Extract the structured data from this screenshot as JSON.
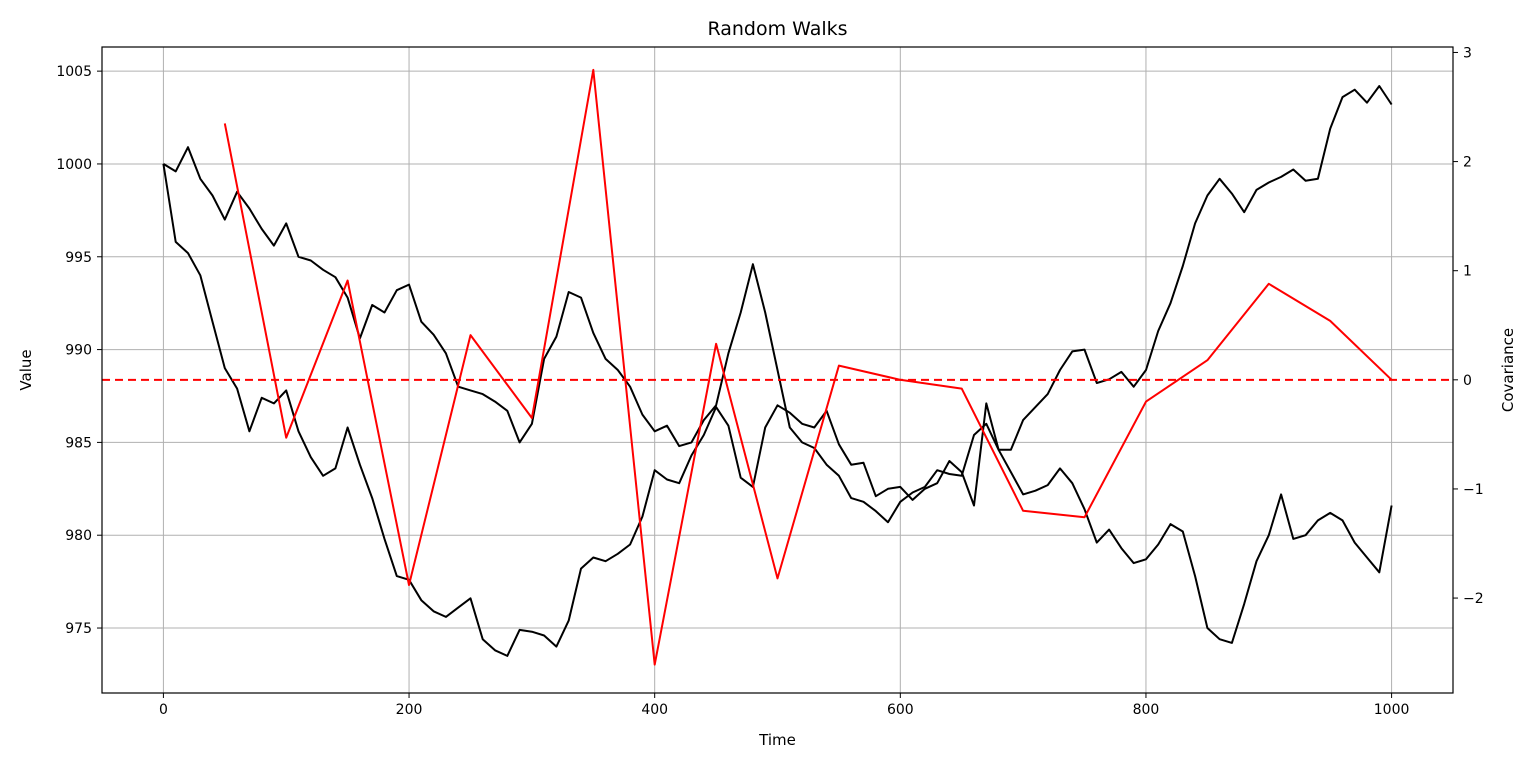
{
  "chart_data": {
    "type": "line",
    "title": "Random Walks",
    "xlabel": "Time",
    "ylabel": "Value",
    "y2label": "Covariance",
    "xlim": [
      -50,
      1050
    ],
    "ylim": [
      971.5,
      1006.3
    ],
    "y2lim": [
      -2.87,
      3.05
    ],
    "xticks": [
      0,
      200,
      400,
      600,
      800,
      1000
    ],
    "yticks": [
      975,
      980,
      985,
      990,
      995,
      1000,
      1005
    ],
    "y2ticks": [
      -2,
      -1,
      0,
      1,
      2,
      3
    ],
    "y2tick_labels": [
      "−2",
      "−1",
      "0",
      "1",
      "2",
      "3"
    ],
    "grid": true,
    "colors": {
      "walk": "#000000",
      "covariance": "#ff0000",
      "zero_line": "#ff0000",
      "y2label": "#ff0000"
    },
    "series": [
      {
        "axis": "left",
        "color": "#000000",
        "x": [
          0,
          10,
          20,
          30,
          40,
          50,
          60,
          70,
          80,
          90,
          100,
          110,
          120,
          130,
          140,
          150,
          160,
          170,
          180,
          190,
          200,
          210,
          220,
          230,
          240,
          250,
          260,
          270,
          280,
          290,
          300,
          310,
          320,
          330,
          340,
          350,
          360,
          370,
          380,
          390,
          400,
          410,
          420,
          430,
          440,
          450,
          460,
          470,
          480,
          490,
          500,
          510,
          520,
          530,
          540,
          550,
          560,
          570,
          580,
          590,
          600,
          610,
          620,
          630,
          640,
          650,
          660,
          670,
          680,
          690,
          700,
          710,
          720,
          730,
          740,
          750,
          760,
          770,
          780,
          790,
          800,
          810,
          820,
          830,
          840,
          850,
          860,
          870,
          880,
          890,
          900,
          910,
          920,
          930,
          940,
          950,
          960,
          970,
          980,
          990,
          1000
        ],
        "values": [
          1000,
          999.6,
          1000.9,
          999.2,
          998.3,
          997.0,
          998.5,
          997.6,
          996.5,
          995.6,
          996.8,
          995.0,
          994.8,
          994.3,
          993.9,
          992.8,
          990.6,
          992.4,
          992.0,
          993.2,
          993.5,
          991.5,
          990.8,
          989.8,
          988.0,
          987.8,
          987.6,
          987.2,
          986.7,
          985.0,
          986.0,
          989.5,
          990.7,
          993.1,
          992.8,
          990.9,
          989.5,
          988.9,
          988.0,
          986.5,
          985.6,
          985.9,
          984.8,
          985.0,
          986.2,
          987.0,
          989.8,
          992.0,
          994.6,
          992.0,
          988.9,
          985.8,
          985.0,
          984.7,
          983.8,
          983.2,
          982.0,
          981.8,
          981.3,
          980.7,
          981.8,
          982.3,
          982.6,
          983.5,
          983.3,
          983.2,
          985.4,
          986.0,
          984.6,
          983.4,
          982.2,
          982.4,
          982.7,
          983.6,
          982.8,
          981.4,
          979.6,
          980.3,
          979.3,
          978.5,
          978.7,
          979.5,
          980.6,
          980.2,
          977.8,
          975.0,
          974.4,
          974.2,
          976.3,
          978.6,
          980.0,
          982.2,
          979.8,
          980.0,
          980.8,
          981.2,
          980.8,
          979.6,
          978.8,
          978.0,
          981.6
        ]
      },
      {
        "axis": "left",
        "color": "#000000",
        "x": [
          0,
          10,
          20,
          30,
          40,
          50,
          60,
          70,
          80,
          90,
          100,
          110,
          120,
          130,
          140,
          150,
          160,
          170,
          180,
          190,
          200,
          210,
          220,
          230,
          240,
          250,
          260,
          270,
          280,
          290,
          300,
          310,
          320,
          330,
          340,
          350,
          360,
          370,
          380,
          390,
          400,
          410,
          420,
          430,
          440,
          450,
          460,
          470,
          480,
          490,
          500,
          510,
          520,
          530,
          540,
          550,
          560,
          570,
          580,
          590,
          600,
          610,
          620,
          630,
          640,
          650,
          660,
          670,
          680,
          690,
          700,
          710,
          720,
          730,
          740,
          750,
          760,
          770,
          780,
          790,
          800,
          810,
          820,
          830,
          840,
          850,
          860,
          870,
          880,
          890,
          900,
          910,
          920,
          930,
          940,
          950,
          960,
          970,
          980,
          990,
          1000
        ],
        "values": [
          1000,
          995.8,
          995.2,
          994.0,
          991.5,
          989.0,
          987.9,
          985.6,
          987.4,
          987.1,
          987.8,
          985.6,
          984.2,
          983.2,
          983.6,
          985.8,
          983.8,
          982.0,
          979.8,
          977.8,
          977.6,
          976.5,
          975.9,
          975.6,
          976.1,
          976.6,
          974.4,
          973.8,
          973.5,
          974.9,
          974.8,
          974.6,
          974.0,
          975.4,
          978.2,
          978.8,
          978.6,
          979.0,
          979.5,
          981.0,
          983.5,
          983.0,
          982.8,
          984.3,
          985.4,
          986.9,
          985.9,
          983.1,
          982.6,
          985.8,
          987.0,
          986.6,
          986.0,
          985.8,
          986.7,
          984.9,
          983.8,
          983.9,
          982.1,
          982.5,
          982.6,
          981.9,
          982.5,
          982.8,
          984.0,
          983.4,
          981.6,
          987.1,
          984.6,
          984.6,
          986.2,
          986.9,
          987.6,
          988.9,
          989.9,
          990.0,
          988.2,
          988.4,
          988.8,
          988.0,
          988.9,
          991.0,
          992.5,
          994.5,
          996.8,
          998.3,
          999.2,
          998.4,
          997.4,
          998.6,
          999.0,
          999.3,
          999.7,
          999.1,
          999.2,
          1001.9,
          1003.6,
          1004.0,
          1003.3,
          1004.2,
          1003.2
        ]
      },
      {
        "axis": "right",
        "color": "#ff0000",
        "x": [
          50,
          100,
          150,
          200,
          250,
          300,
          350,
          400,
          450,
          500,
          550,
          600,
          650,
          700,
          750,
          800,
          850,
          900,
          950,
          1000
        ],
        "values": [
          2.35,
          -0.53,
          0.91,
          -1.88,
          0.41,
          -0.35,
          2.84,
          -2.61,
          0.33,
          -1.82,
          0.13,
          0.0,
          -0.08,
          -1.2,
          -1.26,
          -0.2,
          0.18,
          0.88,
          0.54,
          0.0
        ]
      }
    ],
    "reference_line": {
      "axis": "right",
      "y": 0,
      "style": "dashed",
      "color": "#ff0000"
    }
  }
}
